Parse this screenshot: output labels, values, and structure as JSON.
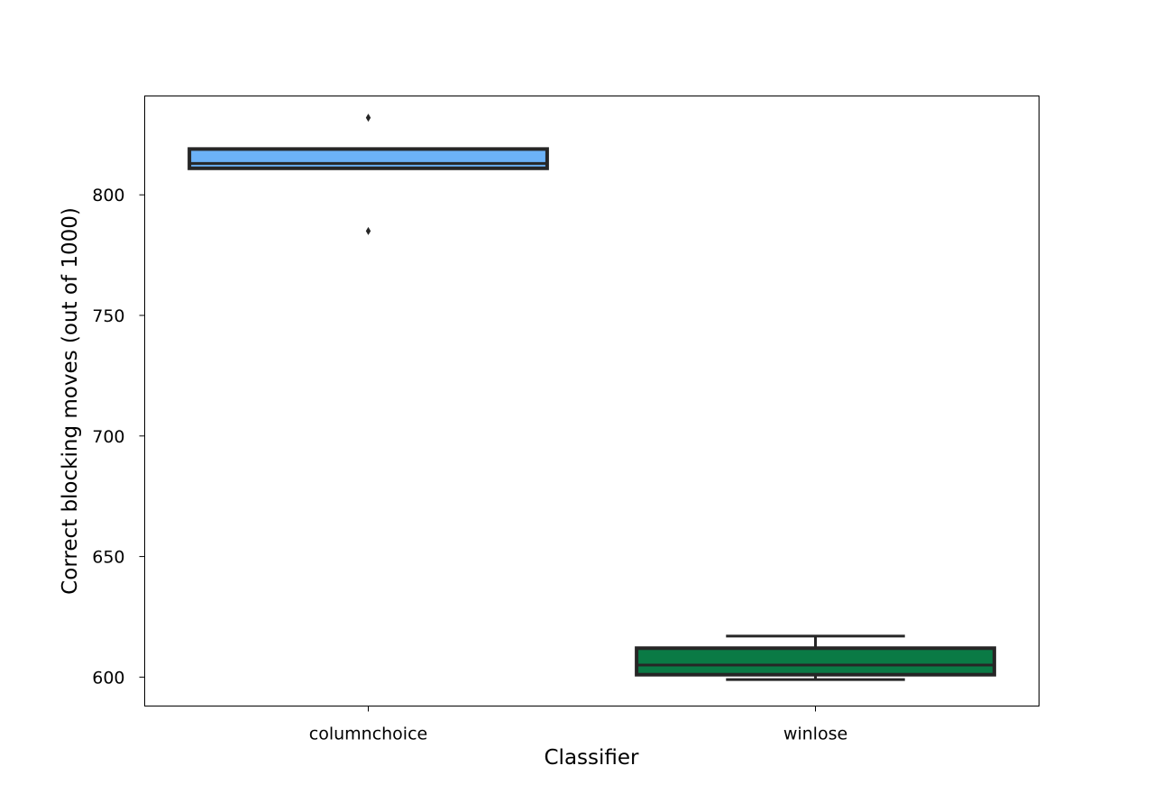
{
  "chart_data": {
    "type": "box",
    "title": "",
    "xlabel": "Classifier",
    "ylabel": "Correct blocking moves (out of 1000)",
    "ylim": [
      588,
      841
    ],
    "yticks": [
      600,
      650,
      700,
      750,
      800
    ],
    "grid": false,
    "categories": [
      "columnchoice",
      "winlose"
    ],
    "boxes": [
      {
        "category": "columnchoice",
        "color": "#6CB2F7",
        "q1": 811,
        "median": 813,
        "q3": 819,
        "whisker_low": 811,
        "whisker_high": 819,
        "outliers": [
          832,
          785
        ]
      },
      {
        "category": "winlose",
        "color": "#0A7A45",
        "q1": 601,
        "median": 605,
        "q3": 612,
        "whisker_low": 599,
        "whisker_high": 617,
        "outliers": []
      }
    ]
  }
}
